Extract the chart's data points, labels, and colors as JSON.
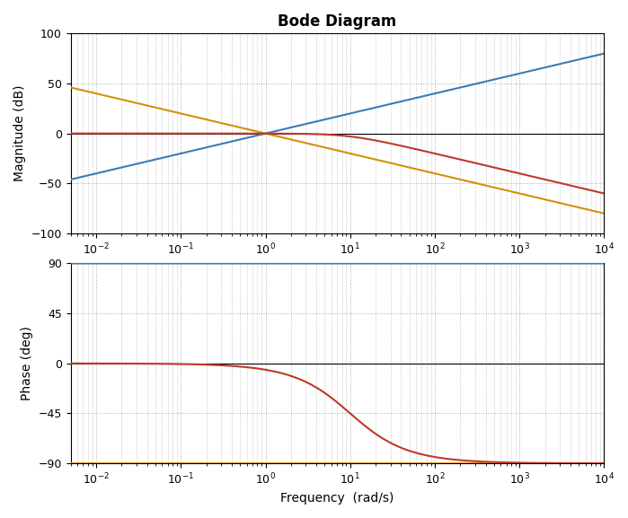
{
  "title": "Bode Diagram",
  "xlabel": "Frequency  (rad/s)",
  "ylabel_mag": "Magnitude (dB)",
  "ylabel_phase": "Phase (deg)",
  "freq_range": [
    0.005,
    10000.0
  ],
  "mag_ylim": [
    -100,
    100
  ],
  "phase_ylim": [
    -90,
    90
  ],
  "mag_yticks": [
    -100,
    -50,
    0,
    50,
    100
  ],
  "phase_yticks": [
    -90,
    -45,
    0,
    45,
    90
  ],
  "colors": {
    "blue": "#3C7BB5",
    "orange": "#D4900A",
    "red": "#C0392B"
  },
  "blue_gain_db": 0,
  "orange_gain_db": 0,
  "red_pole": 10,
  "red_gain": 1,
  "grid_color": "#555555",
  "grid_alpha": 0.5,
  "grid_linestyle": ":",
  "background_color": "#ffffff",
  "figsize": [
    6.99,
    5.77
  ],
  "dpi": 100,
  "linewidth": 1.5
}
